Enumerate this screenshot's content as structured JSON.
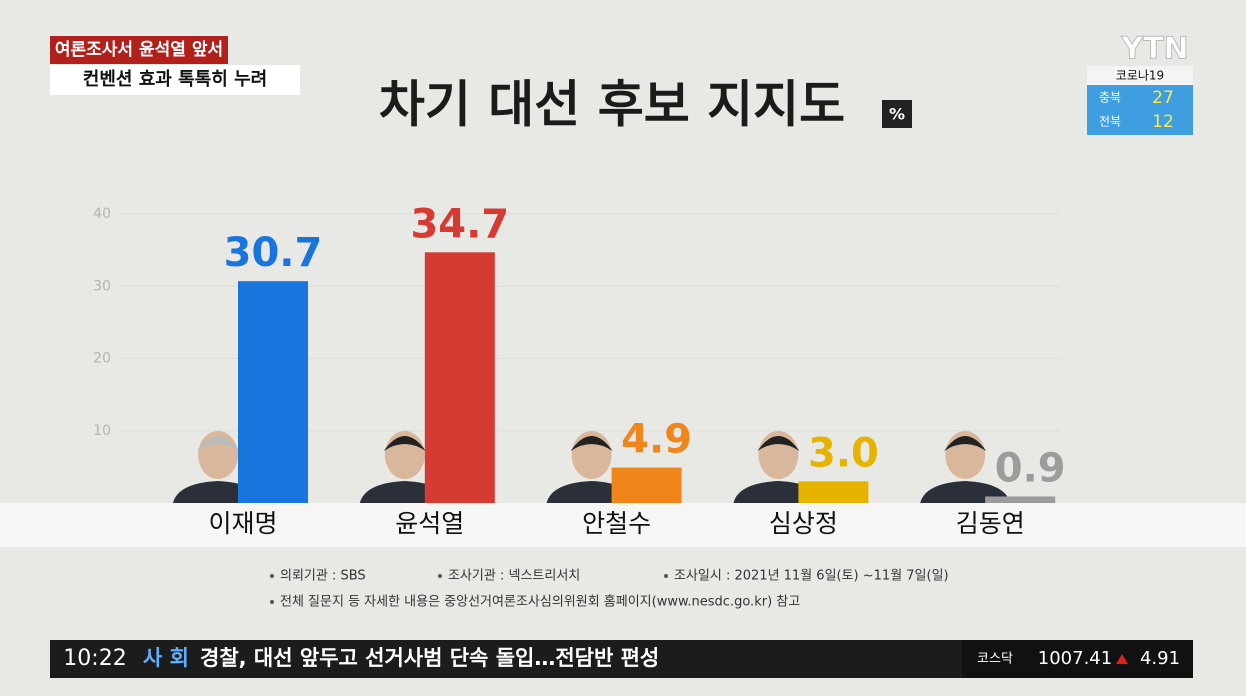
{
  "chart_data": {
    "type": "bar",
    "title": "차기 대선 후보 지지도",
    "unit": "%",
    "categories": [
      "이재명",
      "윤석열",
      "안철수",
      "심상정",
      "김동연"
    ],
    "values": [
      30.7,
      34.7,
      4.9,
      3.0,
      0.9
    ],
    "value_labels": [
      "30.7",
      "34.7",
      "4.9",
      "3.0",
      "0.9"
    ],
    "colors": [
      "#1a74de",
      "#d53a33",
      "#f0861b",
      "#e6b400",
      "#9c9c9c"
    ],
    "ylim": [
      0,
      40
    ],
    "yticks": [
      10,
      20,
      30,
      40
    ],
    "grid": true,
    "notes": [
      "의뢰기관 : SBS",
      "조사기관 : 넥스트리서치",
      "조사일시 : 2021년 11월 6일(토) ~11월 7일(일)",
      "전체 질문지 등 자세한 내용은 중앙선거여론조사심의위원회 홈페이지(www.nesdc.go.kr) 참고"
    ]
  },
  "header": {
    "tag": "여론조사서 윤석열 앞서",
    "subtag": "컨벤션 효과 톡톡히 누려",
    "logo": "YTN"
  },
  "covid": {
    "title": "코로나19",
    "rows": [
      [
        "충북",
        "27"
      ],
      [
        "전북",
        "12"
      ]
    ]
  },
  "ticker": {
    "time": "10:22",
    "section": "사 회",
    "headline": "경찰, 대선 앞두고 선거사범 단속 돌입…전담반 편성",
    "index_name": "코스닥",
    "index_value": "1007.41",
    "index_change": "4.91"
  }
}
